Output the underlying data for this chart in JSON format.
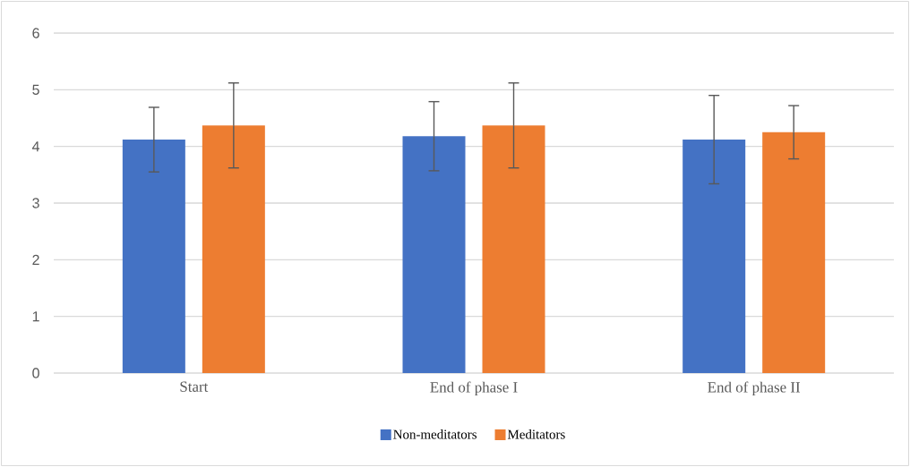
{
  "chart_data": {
    "type": "bar",
    "categories": [
      "Start",
      "End of phase I",
      "End of phase II"
    ],
    "series": [
      {
        "name": "Non-meditators",
        "color": "#4472c4",
        "values": [
          4.12,
          4.18,
          4.12
        ],
        "errors": [
          0.57,
          0.61,
          0.78
        ]
      },
      {
        "name": "Meditators",
        "color": "#ed7d31",
        "values": [
          4.37,
          4.37,
          4.25
        ],
        "errors": [
          0.75,
          0.75,
          0.47
        ]
      }
    ],
    "ylim": [
      0,
      6
    ],
    "yticks": [
      0,
      1,
      2,
      3,
      4,
      5,
      6
    ],
    "grid": "y",
    "legend": "bottom"
  }
}
